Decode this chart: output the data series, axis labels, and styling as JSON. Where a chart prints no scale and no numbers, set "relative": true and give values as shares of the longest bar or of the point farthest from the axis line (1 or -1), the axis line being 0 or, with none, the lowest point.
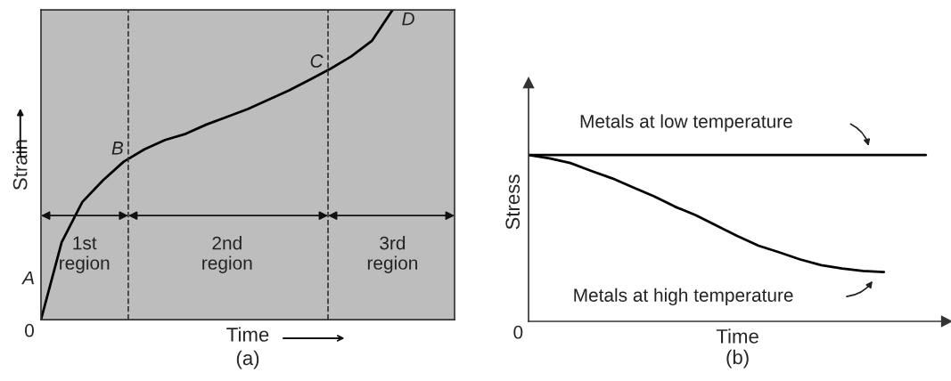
{
  "chart_data": [
    {
      "type": "line",
      "title": "(a)",
      "xlabel": "Time",
      "ylabel": "Strain",
      "relative": true,
      "tick_labels": false,
      "marker": "none",
      "line_style": "solid",
      "categories": [
        null,
        null,
        null,
        null,
        null,
        null,
        null,
        null,
        null,
        null,
        null,
        null,
        null,
        null,
        null,
        null,
        null,
        null
      ],
      "series": [
        {
          "color": "#000000",
          "values": [
            0,
            0.25,
            0.38,
            0.45,
            0.51,
            0.55,
            0.58,
            0.6,
            0.63,
            0.655,
            0.68,
            0.71,
            0.74,
            0.775,
            0.81,
            0.85,
            0.9,
            1.0
          ]
        }
      ],
      "annotations": [
        "A",
        "B",
        "C",
        "D",
        "0",
        "1st\nregion",
        "2nd\nregion",
        "3rd\nregion"
      ]
    },
    {
      "type": "line",
      "title": "(b)",
      "xlabel": "Time",
      "ylabel": "Stress",
      "relative": true,
      "tick_labels": false,
      "marker": "none",
      "line_style": "solid",
      "categories": [
        null,
        null,
        null,
        null,
        null,
        null,
        null,
        null,
        null,
        null,
        null,
        null,
        null,
        null,
        null,
        null,
        null,
        null,
        null,
        null,
        null
      ],
      "series": [
        {
          "name": "Metals at low temperature",
          "color": "#000000",
          "values": [
            1,
            1,
            1,
            1,
            1,
            1,
            1,
            1,
            1,
            1,
            1,
            1,
            1,
            1,
            1,
            1,
            1,
            1,
            1,
            1,
            null
          ]
        },
        {
          "name": "Metals at high temperature",
          "color": "#000000",
          "values": [
            1,
            0.98,
            0.952,
            0.905,
            0.86,
            0.806,
            0.752,
            0.69,
            0.638,
            0.575,
            0.513,
            0.455,
            0.415,
            0.372,
            0.338,
            0.318,
            0.303,
            0.297,
            null,
            null,
            null
          ]
        }
      ],
      "annotations": [
        "0"
      ]
    }
  ]
}
